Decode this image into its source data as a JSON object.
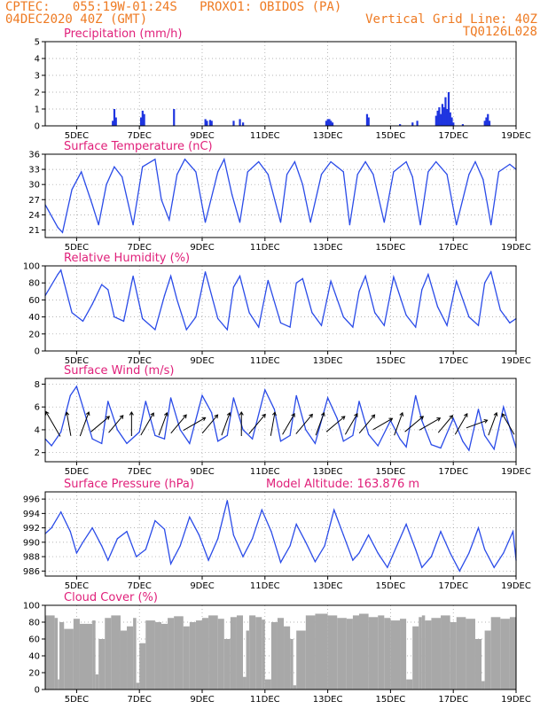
{
  "header": {
    "line1": "CPTEC:   055:19W-01:24S   PROXO1: OBIDOS (PA)",
    "line2_left": "04DEC2020 40Z (GMT)",
    "line2_right": "Vertical Grid Line: 40Z",
    "line3_right": "TQ0126L028"
  },
  "colors": {
    "header": "#ee7a22",
    "title": "#e0207a",
    "line": "#2a4be8",
    "bar": "#1f35e0",
    "cloud": "#a8a8a8",
    "grid": "#9a9a9a"
  },
  "chart_data": [
    {
      "type": "bar",
      "title": "Precipitation (mm/h)",
      "x_ticks": [
        "5DEC",
        "7DEC",
        "9DEC",
        "11DEC",
        "13DEC",
        "15DEC",
        "17DEC",
        "19DEC"
      ],
      "y_ticks": [
        0,
        1,
        2,
        3,
        4,
        5
      ],
      "ylim": [
        0,
        5
      ],
      "xlim_days": [
        4.0,
        19.0
      ],
      "x_day": [
        6.15,
        6.2,
        6.25,
        7.05,
        7.1,
        7.15,
        8.1,
        9.1,
        9.15,
        9.25,
        9.3,
        10.0,
        10.2,
        10.3,
        12.95,
        13.0,
        13.05,
        13.1,
        13.15,
        14.25,
        14.3,
        15.3,
        15.7,
        15.85,
        16.45,
        16.5,
        16.55,
        16.6,
        16.65,
        16.7,
        16.75,
        16.8,
        16.85,
        16.9,
        16.95,
        17.0,
        17.3,
        18.0,
        18.05,
        18.1,
        18.15
      ],
      "values": [
        0.3,
        1.0,
        0.5,
        0.5,
        0.9,
        0.7,
        1.0,
        0.4,
        0.3,
        0.35,
        0.3,
        0.3,
        0.4,
        0.2,
        0.3,
        0.4,
        0.4,
        0.3,
        0.2,
        0.7,
        0.5,
        0.1,
        0.2,
        0.3,
        0.6,
        0.9,
        1.1,
        0.7,
        1.3,
        1.1,
        1.7,
        1.0,
        2.0,
        0.8,
        0.5,
        0.2,
        0.1,
        0.3,
        0.5,
        0.7,
        0.3
      ],
      "grid": true
    },
    {
      "type": "line",
      "title": "Surface Temperature (nC)",
      "x_ticks": [
        "5DEC",
        "7DEC",
        "9DEC",
        "11DEC",
        "13DEC",
        "15DEC",
        "17DEC",
        "19DEC"
      ],
      "y_ticks": [
        21,
        24,
        27,
        30,
        33,
        36
      ],
      "ylim": [
        19.5,
        36
      ],
      "xlim_days": [
        4.0,
        19.0
      ],
      "x_day": [
        4.0,
        4.4,
        4.55,
        4.85,
        5.15,
        5.5,
        5.7,
        5.95,
        6.2,
        6.45,
        6.8,
        7.1,
        7.5,
        7.7,
        7.95,
        8.2,
        8.45,
        8.8,
        9.1,
        9.5,
        9.7,
        9.95,
        10.2,
        10.45,
        10.8,
        11.1,
        11.5,
        11.7,
        11.95,
        12.2,
        12.45,
        12.8,
        13.1,
        13.5,
        13.7,
        13.95,
        14.2,
        14.45,
        14.8,
        15.1,
        15.5,
        15.7,
        15.95,
        16.2,
        16.45,
        16.8,
        17.1,
        17.5,
        17.7,
        17.95,
        18.2,
        18.45,
        18.8,
        19.0
      ],
      "values": [
        26,
        21.5,
        20.5,
        29,
        32.5,
        26,
        22,
        30,
        33.5,
        31.5,
        22,
        33.5,
        35,
        27,
        23,
        32,
        35,
        32.5,
        22.5,
        32.5,
        35,
        28,
        22.5,
        32.5,
        34.5,
        32,
        22.5,
        32,
        34.5,
        30,
        22.5,
        32,
        34.5,
        32.5,
        22,
        32,
        34.5,
        32,
        22.5,
        32.5,
        34.5,
        31.5,
        22,
        32.5,
        34.5,
        32,
        22,
        32,
        34.5,
        31,
        22,
        32.5,
        34,
        33
      ],
      "grid": true
    },
    {
      "type": "line",
      "title": "Relative Humidity (%)",
      "x_ticks": [
        "5DEC",
        "7DEC",
        "9DEC",
        "11DEC",
        "13DEC",
        "15DEC",
        "17DEC",
        "19DEC"
      ],
      "y_ticks": [
        0,
        20,
        40,
        60,
        80,
        100
      ],
      "ylim": [
        0,
        100
      ],
      "xlim_days": [
        4.0,
        19.0
      ],
      "x_day": [
        4.0,
        4.4,
        4.5,
        4.85,
        5.2,
        5.5,
        5.8,
        6.0,
        6.2,
        6.5,
        6.8,
        7.1,
        7.5,
        7.8,
        8.0,
        8.2,
        8.5,
        8.8,
        9.1,
        9.5,
        9.8,
        10.0,
        10.2,
        10.5,
        10.8,
        11.1,
        11.5,
        11.8,
        12.0,
        12.2,
        12.5,
        12.8,
        13.1,
        13.5,
        13.8,
        14.0,
        14.2,
        14.5,
        14.8,
        15.1,
        15.5,
        15.8,
        16.0,
        16.2,
        16.5,
        16.8,
        17.1,
        17.5,
        17.8,
        18.0,
        18.2,
        18.5,
        18.8,
        19.0
      ],
      "values": [
        65,
        90,
        95,
        45,
        35,
        55,
        78,
        72,
        40,
        35,
        88,
        38,
        25,
        65,
        88,
        60,
        25,
        40,
        93,
        38,
        25,
        75,
        88,
        45,
        28,
        83,
        33,
        28,
        80,
        85,
        45,
        30,
        82,
        40,
        28,
        70,
        88,
        45,
        30,
        87,
        42,
        28,
        72,
        90,
        52,
        30,
        82,
        40,
        30,
        80,
        93,
        48,
        33,
        38
      ],
      "grid": true
    },
    {
      "type": "line",
      "title": "Surface Wind (m/s)",
      "x_ticks": [
        "5DEC",
        "7DEC",
        "9DEC",
        "11DEC",
        "13DEC",
        "15DEC",
        "17DEC",
        "19DEC"
      ],
      "y_ticks": [
        2,
        4,
        6,
        8
      ],
      "ylim": [
        1.2,
        8.5
      ],
      "xlim_days": [
        4.0,
        19.0
      ],
      "x_day": [
        4.0,
        4.2,
        4.5,
        4.8,
        5.0,
        5.2,
        5.5,
        5.8,
        6.0,
        6.3,
        6.6,
        7.0,
        7.2,
        7.5,
        7.8,
        8.0,
        8.3,
        8.6,
        9.0,
        9.3,
        9.5,
        9.8,
        10.0,
        10.3,
        10.6,
        11.0,
        11.3,
        11.5,
        11.8,
        12.0,
        12.3,
        12.6,
        13.0,
        13.3,
        13.5,
        13.8,
        14.0,
        14.3,
        14.6,
        15.0,
        15.3,
        15.5,
        15.8,
        16.0,
        16.3,
        16.6,
        17.0,
        17.3,
        17.5,
        17.8,
        18.0,
        18.3,
        18.6,
        19.0
      ],
      "values": [
        3.2,
        2.6,
        3.8,
        7.0,
        7.8,
        6.0,
        3.2,
        2.8,
        6.5,
        4.0,
        2.8,
        3.8,
        6.5,
        3.5,
        3.2,
        6.8,
        4.0,
        2.8,
        7.0,
        5.5,
        3.0,
        3.5,
        6.8,
        4.0,
        3.2,
        7.5,
        5.8,
        3.0,
        3.5,
        7.0,
        4.0,
        2.8,
        6.8,
        5.0,
        3.0,
        3.5,
        6.5,
        3.6,
        2.6,
        4.8,
        3.2,
        2.5,
        7.0,
        4.8,
        2.7,
        2.4,
        5.0,
        3.0,
        2.2,
        5.8,
        3.5,
        2.3,
        6.0,
        2.4
      ],
      "grid": true,
      "wind_arrows": [
        {
          "day": 4.25,
          "dir_deg": 330,
          "speed": 3.6
        },
        {
          "day": 4.75,
          "dir_deg": 350,
          "speed": 3.0
        },
        {
          "day": 5.25,
          "dir_deg": 20,
          "speed": 3.2
        },
        {
          "day": 5.75,
          "dir_deg": 50,
          "speed": 3.0
        },
        {
          "day": 6.25,
          "dir_deg": 40,
          "speed": 2.8
        },
        {
          "day": 6.75,
          "dir_deg": 0,
          "speed": 3.0
        },
        {
          "day": 7.25,
          "dir_deg": 30,
          "speed": 3.2
        },
        {
          "day": 7.75,
          "dir_deg": 20,
          "speed": 3.0
        },
        {
          "day": 8.25,
          "dir_deg": 40,
          "speed": 3.0
        },
        {
          "day": 8.75,
          "dir_deg": 60,
          "speed": 3.2
        },
        {
          "day": 9.25,
          "dir_deg": 40,
          "speed": 3.0
        },
        {
          "day": 9.75,
          "dir_deg": 20,
          "speed": 3.0
        },
        {
          "day": 10.25,
          "dir_deg": 0,
          "speed": 3.0
        },
        {
          "day": 10.75,
          "dir_deg": 40,
          "speed": 3.2
        },
        {
          "day": 11.25,
          "dir_deg": 10,
          "speed": 3.0
        },
        {
          "day": 11.75,
          "dir_deg": 30,
          "speed": 3.0
        },
        {
          "day": 12.25,
          "dir_deg": 40,
          "speed": 3.2
        },
        {
          "day": 12.75,
          "dir_deg": 20,
          "speed": 3.0
        },
        {
          "day": 13.25,
          "dir_deg": 50,
          "speed": 3.0
        },
        {
          "day": 13.75,
          "dir_deg": 30,
          "speed": 3.0
        },
        {
          "day": 14.25,
          "dir_deg": 40,
          "speed": 3.0
        },
        {
          "day": 14.75,
          "dir_deg": 60,
          "speed": 2.8
        },
        {
          "day": 15.25,
          "dir_deg": 20,
          "speed": 3.0
        },
        {
          "day": 15.75,
          "dir_deg": 50,
          "speed": 3.0
        },
        {
          "day": 16.25,
          "dir_deg": 60,
          "speed": 3.0
        },
        {
          "day": 16.75,
          "dir_deg": 40,
          "speed": 2.8
        },
        {
          "day": 17.25,
          "dir_deg": 30,
          "speed": 3.0
        },
        {
          "day": 17.75,
          "dir_deg": 70,
          "speed": 2.8
        },
        {
          "day": 18.25,
          "dir_deg": 20,
          "speed": 3.0
        },
        {
          "day": 18.75,
          "dir_deg": 330,
          "speed": 3.0
        }
      ]
    },
    {
      "type": "line",
      "title": "Surface Pressure (hPa)",
      "annotation": "Model Altitude: 163.876 m",
      "x_ticks": [
        "5DEC",
        "7DEC",
        "9DEC",
        "11DEC",
        "13DEC",
        "15DEC",
        "17DEC",
        "19DEC"
      ],
      "y_ticks": [
        986,
        988,
        990,
        992,
        994,
        996
      ],
      "ylim": [
        985.3,
        997
      ],
      "xlim_days": [
        4.0,
        19.0
      ],
      "x_day": [
        4.0,
        4.2,
        4.5,
        4.8,
        5.0,
        5.2,
        5.5,
        5.8,
        6.0,
        6.3,
        6.6,
        6.9,
        7.2,
        7.5,
        7.8,
        8.0,
        8.3,
        8.6,
        8.9,
        9.2,
        9.5,
        9.8,
        10.0,
        10.3,
        10.6,
        10.9,
        11.2,
        11.5,
        11.8,
        12.0,
        12.3,
        12.6,
        12.9,
        13.2,
        13.5,
        13.8,
        14.0,
        14.3,
        14.6,
        14.9,
        15.2,
        15.5,
        15.8,
        16.0,
        16.3,
        16.6,
        16.9,
        17.2,
        17.5,
        17.8,
        18.0,
        18.3,
        18.6,
        18.9,
        19.0
      ],
      "values": [
        991.2,
        992.0,
        994.2,
        991.5,
        988.5,
        990.0,
        992.0,
        989.5,
        987.5,
        990.5,
        991.5,
        988.0,
        989.0,
        993.0,
        991.8,
        987.0,
        989.5,
        993.5,
        991.0,
        987.5,
        990.5,
        995.8,
        991.0,
        988.0,
        990.5,
        994.5,
        991.5,
        987.2,
        989.5,
        992.5,
        990.0,
        987.3,
        989.5,
        994.5,
        991.0,
        987.5,
        988.5,
        991.0,
        988.5,
        986.5,
        989.5,
        992.5,
        989.0,
        986.5,
        988.0,
        991.5,
        988.5,
        986.0,
        988.5,
        992.0,
        989.0,
        986.5,
        988.5,
        991.5,
        987.5
      ],
      "grid": true
    },
    {
      "type": "area",
      "title": "Cloud Cover (%)",
      "x_ticks": [
        "5DEC",
        "7DEC",
        "9DEC",
        "11DEC",
        "13DEC",
        "15DEC",
        "17DEC",
        "19DEC"
      ],
      "y_ticks": [
        0,
        20,
        40,
        60,
        80,
        100
      ],
      "ylim": [
        0,
        100
      ],
      "xlim_days": [
        4.0,
        19.0
      ],
      "x_day": [
        4.0,
        4.3,
        4.4,
        4.45,
        4.6,
        4.9,
        5.1,
        5.5,
        5.6,
        5.7,
        5.9,
        6.1,
        6.4,
        6.6,
        6.8,
        6.9,
        7.0,
        7.2,
        7.5,
        7.7,
        7.9,
        8.1,
        8.4,
        8.6,
        8.8,
        9.0,
        9.2,
        9.5,
        9.7,
        9.9,
        10.1,
        10.3,
        10.4,
        10.5,
        10.7,
        10.9,
        11.0,
        11.2,
        11.4,
        11.6,
        11.8,
        11.9,
        12.0,
        12.3,
        12.6,
        13.0,
        13.3,
        13.6,
        13.8,
        14.0,
        14.3,
        14.6,
        14.8,
        15.0,
        15.3,
        15.5,
        15.7,
        15.9,
        16.0,
        16.1,
        16.3,
        16.6,
        16.9,
        17.1,
        17.4,
        17.7,
        17.9,
        18.0,
        18.2,
        18.5,
        18.8,
        19.0
      ],
      "values": [
        88,
        85,
        12,
        80,
        72,
        84,
        78,
        82,
        18,
        60,
        85,
        88,
        70,
        75,
        85,
        8,
        55,
        82,
        80,
        78,
        85,
        87,
        75,
        80,
        82,
        85,
        88,
        84,
        60,
        86,
        88,
        15,
        70,
        88,
        86,
        83,
        12,
        80,
        85,
        75,
        60,
        5,
        70,
        88,
        90,
        88,
        85,
        84,
        88,
        90,
        86,
        88,
        85,
        82,
        84,
        12,
        75,
        86,
        88,
        82,
        85,
        88,
        80,
        86,
        84,
        60,
        10,
        70,
        86,
        84,
        86,
        84
      ],
      "grid": true
    }
  ]
}
